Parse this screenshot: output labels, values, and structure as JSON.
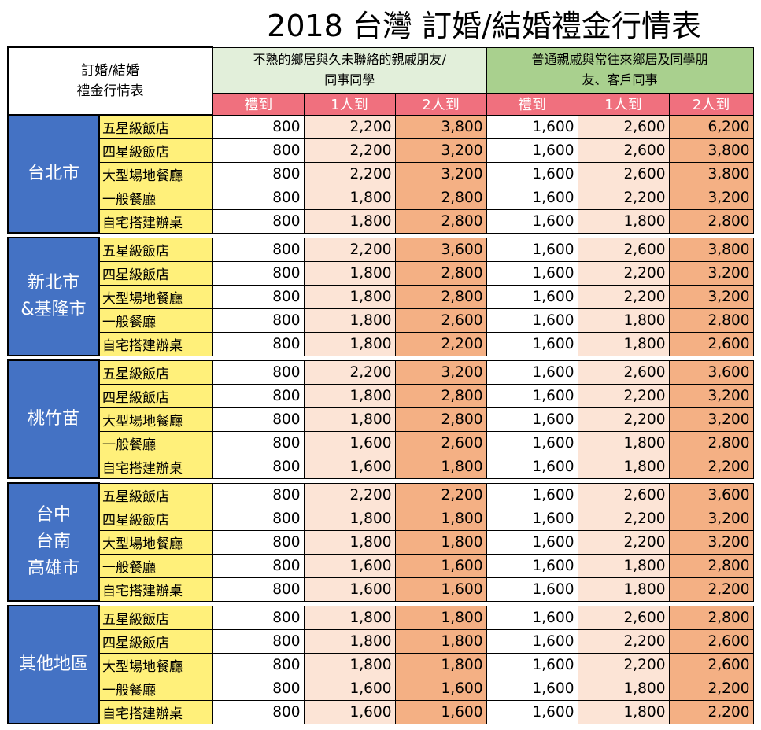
{
  "title": "2018 台灣 訂婚/結婚禮金行情表",
  "header": {
    "corner_line1": "訂婚/結婚",
    "corner_line2": "禮金行情表",
    "group1_line1": "不熟的鄉居與久未聯絡的親戚朋友/",
    "group1_line2": "同事同學",
    "group2_line1": "普通親戚與常往來鄉居及同學朋",
    "group2_line2": "友、客戶同事",
    "sub_cols": [
      "禮到",
      "1人到",
      "2人到",
      "禮到",
      "1人到",
      "2人到"
    ]
  },
  "colors": {
    "city_bg": "#4472c4",
    "venue_bg": "#fff07a",
    "sub_header_bg": "#f0707e",
    "group1_bg": "#e2efda",
    "group2_bg": "#a9d08e",
    "light_cell": "#fce4d6",
    "dark_cell": "#f4b084"
  },
  "regions": [
    {
      "lines": [
        "台北市"
      ],
      "rows": [
        {
          "venue": "五星級飯店",
          "values": [
            "800",
            "2,200",
            "3,800",
            "1,600",
            "2,600",
            "6,200"
          ]
        },
        {
          "venue": "四星級飯店",
          "values": [
            "800",
            "2,200",
            "3,200",
            "1,600",
            "2,600",
            "3,800"
          ]
        },
        {
          "venue": "大型場地餐廳",
          "values": [
            "800",
            "2,200",
            "3,200",
            "1,600",
            "2,600",
            "3,800"
          ]
        },
        {
          "venue": "一般餐廳",
          "values": [
            "800",
            "1,800",
            "2,800",
            "1,600",
            "2,200",
            "3,200"
          ]
        },
        {
          "venue": "自宅搭建辦桌",
          "values": [
            "800",
            "1,800",
            "2,800",
            "1,600",
            "1,800",
            "2,800"
          ]
        }
      ]
    },
    {
      "lines": [
        "新北市",
        "&基隆市"
      ],
      "rows": [
        {
          "venue": "五星級飯店",
          "values": [
            "800",
            "2,200",
            "3,600",
            "1,600",
            "2,600",
            "3,800"
          ]
        },
        {
          "venue": "四星級飯店",
          "values": [
            "800",
            "1,800",
            "2,800",
            "1,600",
            "2,200",
            "3,200"
          ]
        },
        {
          "venue": "大型場地餐廳",
          "values": [
            "800",
            "1,800",
            "2,800",
            "1,600",
            "2,200",
            "3,200"
          ]
        },
        {
          "venue": "一般餐廳",
          "values": [
            "800",
            "1,800",
            "2,600",
            "1,600",
            "1,800",
            "2,800"
          ]
        },
        {
          "venue": "自宅搭建辦桌",
          "values": [
            "800",
            "1,800",
            "2,200",
            "1,600",
            "1,800",
            "2,600"
          ]
        }
      ]
    },
    {
      "lines": [
        "桃竹苗"
      ],
      "rows": [
        {
          "venue": "五星級飯店",
          "values": [
            "800",
            "2,200",
            "3,200",
            "1,600",
            "2,600",
            "3,600"
          ]
        },
        {
          "venue": "四星級飯店",
          "values": [
            "800",
            "1,800",
            "2,800",
            "1,600",
            "2,200",
            "3,200"
          ]
        },
        {
          "venue": "大型場地餐廳",
          "values": [
            "800",
            "1,800",
            "2,800",
            "1,600",
            "2,200",
            "3,200"
          ]
        },
        {
          "venue": "一般餐廳",
          "values": [
            "800",
            "1,600",
            "2,600",
            "1,600",
            "1,800",
            "2,800"
          ]
        },
        {
          "venue": "自宅搭建辦桌",
          "values": [
            "800",
            "1,600",
            "1,800",
            "1,600",
            "1,800",
            "2,200"
          ]
        }
      ]
    },
    {
      "lines": [
        "台中",
        "台南",
        "高雄市"
      ],
      "rows": [
        {
          "venue": "五星級飯店",
          "values": [
            "800",
            "2,200",
            "2,200",
            "1,600",
            "2,600",
            "3,600"
          ]
        },
        {
          "venue": "四星級飯店",
          "values": [
            "800",
            "1,800",
            "1,800",
            "1,600",
            "2,200",
            "3,200"
          ]
        },
        {
          "venue": "大型場地餐廳",
          "values": [
            "800",
            "1,800",
            "1,800",
            "1,600",
            "2,200",
            "3,200"
          ]
        },
        {
          "venue": "一般餐廳",
          "values": [
            "800",
            "1,600",
            "1,600",
            "1,600",
            "1,800",
            "2,800"
          ]
        },
        {
          "venue": "自宅搭建辦桌",
          "values": [
            "800",
            "1,600",
            "1,600",
            "1,600",
            "1,800",
            "2,200"
          ]
        }
      ]
    },
    {
      "lines": [
        "其他地區"
      ],
      "rows": [
        {
          "venue": "五星級飯店",
          "values": [
            "800",
            "1,800",
            "1,800",
            "1,600",
            "2,600",
            "2,800"
          ]
        },
        {
          "venue": "四星級飯店",
          "values": [
            "800",
            "1,800",
            "1,800",
            "1,600",
            "2,200",
            "2,600"
          ]
        },
        {
          "venue": "大型場地餐廳",
          "values": [
            "800",
            "1,800",
            "1,800",
            "1,600",
            "2,200",
            "2,600"
          ]
        },
        {
          "venue": "一般餐廳",
          "values": [
            "800",
            "1,600",
            "1,600",
            "1,600",
            "1,800",
            "2,200"
          ]
        },
        {
          "venue": "自宅搭建辦桌",
          "values": [
            "800",
            "1,600",
            "1,600",
            "1,600",
            "1,800",
            "2,200"
          ]
        }
      ]
    }
  ]
}
